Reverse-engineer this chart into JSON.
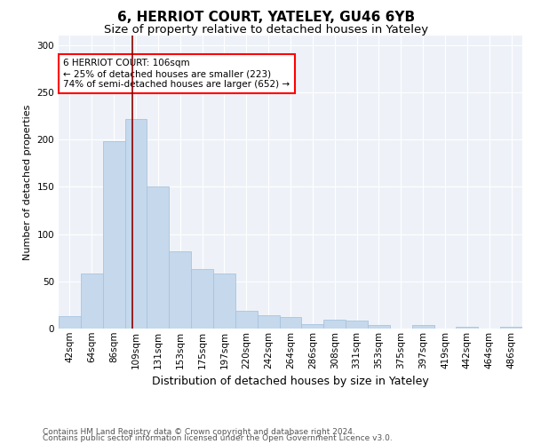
{
  "title1": "6, HERRIOT COURT, YATELEY, GU46 6YB",
  "title2": "Size of property relative to detached houses in Yateley",
  "xlabel": "Distribution of detached houses by size in Yateley",
  "ylabel": "Number of detached properties",
  "categories": [
    "42sqm",
    "64sqm",
    "86sqm",
    "109sqm",
    "131sqm",
    "153sqm",
    "175sqm",
    "197sqm",
    "220sqm",
    "242sqm",
    "264sqm",
    "286sqm",
    "308sqm",
    "331sqm",
    "353sqm",
    "375sqm",
    "397sqm",
    "419sqm",
    "442sqm",
    "464sqm",
    "486sqm"
  ],
  "values": [
    13,
    58,
    198,
    222,
    150,
    82,
    63,
    58,
    19,
    14,
    12,
    5,
    9,
    8,
    4,
    0,
    4,
    0,
    2,
    0,
    2
  ],
  "bar_color": "#c5d8ec",
  "bar_edge_color": "#a8c4de",
  "vline_color": "#8b0000",
  "vline_x": 2.82,
  "annotation_text": "6 HERRIOT COURT: 106sqm\n← 25% of detached houses are smaller (223)\n74% of semi-detached houses are larger (652) →",
  "annotation_box_color": "white",
  "annotation_box_edge": "red",
  "footnote1": "Contains HM Land Registry data © Crown copyright and database right 2024.",
  "footnote2": "Contains public sector information licensed under the Open Government Licence v3.0.",
  "bg_color": "#eef2f8",
  "grid_color": "white",
  "ylim": [
    0,
    310
  ],
  "title1_fontsize": 11,
  "title2_fontsize": 9.5,
  "xlabel_fontsize": 9,
  "ylabel_fontsize": 8,
  "tick_fontsize": 7.5,
  "annotation_fontsize": 7.5,
  "footnote_fontsize": 6.5
}
